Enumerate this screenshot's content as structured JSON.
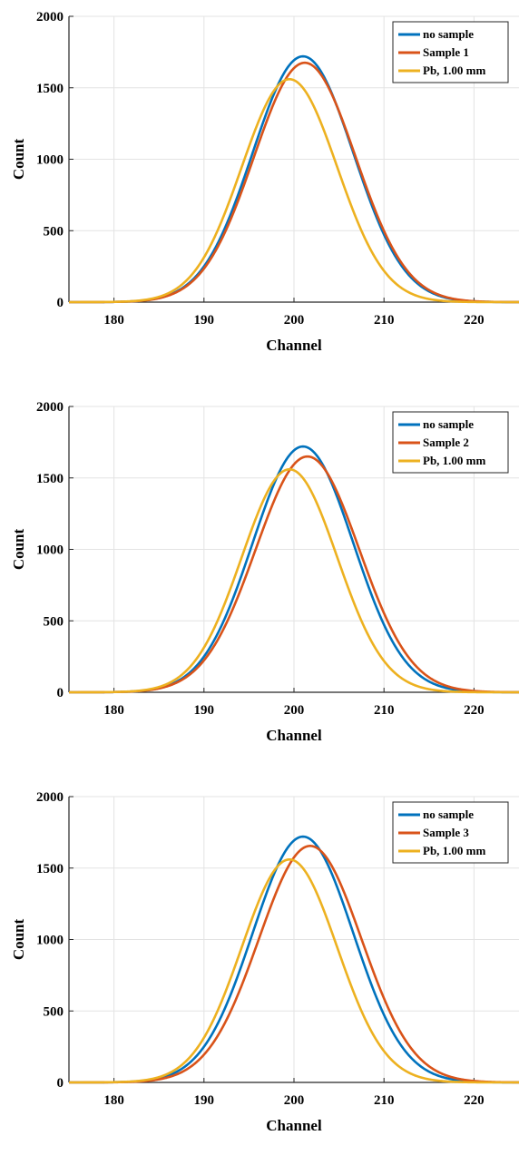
{
  "chart_data": [
    {
      "type": "line",
      "xlabel": "Channel",
      "ylabel": "Count",
      "xlim": [
        175,
        225
      ],
      "ylim": [
        0,
        2000
      ],
      "xticks": [
        180,
        190,
        200,
        210,
        220
      ],
      "yticks": [
        0,
        500,
        1000,
        1500,
        2000
      ],
      "grid": true,
      "legend_position": "top-right",
      "series": [
        {
          "name": "no sample",
          "color": "#0072BD",
          "peak": 1720,
          "center": 201.0,
          "sigma": 5.6
        },
        {
          "name": "Sample 1",
          "color": "#D95319",
          "peak": 1675,
          "center": 201.2,
          "sigma": 5.65
        },
        {
          "name": "Pb, 1.00 mm",
          "color": "#EDB120",
          "peak": 1560,
          "center": 199.5,
          "sigma": 5.3
        }
      ]
    },
    {
      "type": "line",
      "xlabel": "Channel",
      "ylabel": "Count",
      "xlim": [
        175,
        225
      ],
      "ylim": [
        0,
        2000
      ],
      "xticks": [
        180,
        190,
        200,
        210,
        220
      ],
      "yticks": [
        0,
        500,
        1000,
        1500,
        2000
      ],
      "grid": true,
      "legend_position": "top-right",
      "series": [
        {
          "name": "no sample",
          "color": "#0072BD",
          "peak": 1720,
          "center": 201.0,
          "sigma": 5.6
        },
        {
          "name": "Sample 2",
          "color": "#D95319",
          "peak": 1650,
          "center": 201.5,
          "sigma": 5.75
        },
        {
          "name": "Pb, 1.00 mm",
          "color": "#EDB120",
          "peak": 1560,
          "center": 199.5,
          "sigma": 5.3
        }
      ]
    },
    {
      "type": "line",
      "xlabel": "Channel",
      "ylabel": "Count",
      "xlim": [
        175,
        225
      ],
      "ylim": [
        0,
        2000
      ],
      "xticks": [
        180,
        190,
        200,
        210,
        220
      ],
      "yticks": [
        0,
        500,
        1000,
        1500,
        2000
      ],
      "grid": true,
      "legend_position": "top-right",
      "series": [
        {
          "name": "no sample",
          "color": "#0072BD",
          "peak": 1720,
          "center": 201.0,
          "sigma": 5.6
        },
        {
          "name": "Sample 3",
          "color": "#D95319",
          "peak": 1655,
          "center": 201.8,
          "sigma": 5.7
        },
        {
          "name": "Pb, 1.00 mm",
          "color": "#EDB120",
          "peak": 1560,
          "center": 199.5,
          "sigma": 5.3
        }
      ]
    }
  ]
}
